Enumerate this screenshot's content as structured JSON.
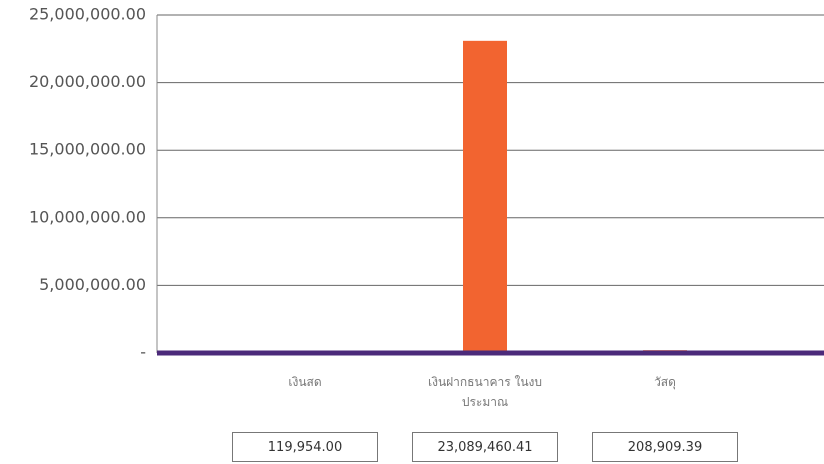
{
  "chart_data": {
    "type": "bar",
    "categories": [
      "เงินสด",
      "เงินฝากธนาคาร ในงบประมาณ",
      "วัสดุ"
    ],
    "values": [
      119954.0,
      23089460.41,
      208909.39
    ],
    "value_labels": [
      "119,954.00",
      "23,089,460.41",
      "208,909.39"
    ],
    "color": "#f26430",
    "ylim": [
      0,
      25000000
    ],
    "yticks": [
      {
        "value": 0,
        "label": "-"
      },
      {
        "value": 5000000,
        "label": "5,000,000.00"
      },
      {
        "value": 10000000,
        "label": "10,000,000.00"
      },
      {
        "value": 15000000,
        "label": "15,000,000.00"
      },
      {
        "value": 20000000,
        "label": "20,000,000.00"
      },
      {
        "value": 25000000,
        "label": "25,000,000.00"
      }
    ],
    "grid": true
  }
}
